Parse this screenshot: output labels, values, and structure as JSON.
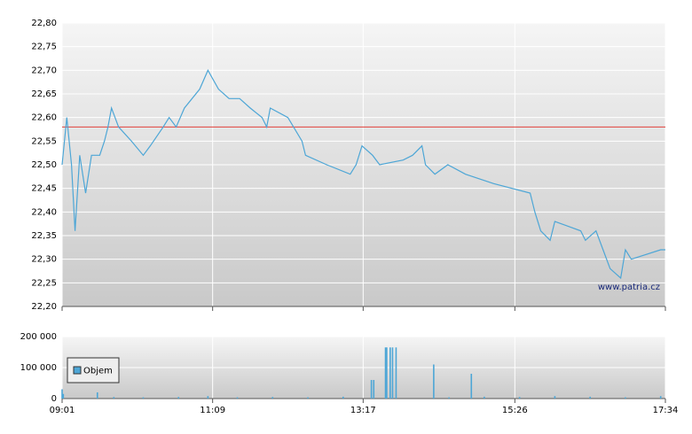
{
  "chart_data": [
    {
      "type": "line",
      "x": [
        "09:01",
        "09:05",
        "09:09",
        "09:12",
        "09:16",
        "09:21",
        "09:26",
        "09:33",
        "09:37",
        "09:40",
        "09:43",
        "09:49",
        "10:00",
        "10:10",
        "10:16",
        "10:27",
        "10:32",
        "10:38",
        "10:45",
        "10:58",
        "11:05",
        "11:14",
        "11:23",
        "11:32",
        "11:41",
        "11:51",
        "11:55",
        "11:58",
        "12:13",
        "12:25",
        "12:28",
        "12:46",
        "13:06",
        "13:11",
        "13:16",
        "13:25",
        "13:31",
        "13:51",
        "13:59",
        "14:07",
        "14:10",
        "14:18",
        "14:29",
        "14:44",
        "15:08",
        "15:39",
        "15:43",
        "15:48",
        "15:56",
        "16:00",
        "16:22",
        "16:26",
        "16:35",
        "16:41",
        "16:47",
        "16:56",
        "17:00",
        "17:05",
        "17:30",
        "17:34"
      ],
      "values": [
        22.5,
        22.6,
        22.5,
        22.36,
        22.52,
        22.44,
        22.52,
        22.52,
        22.55,
        22.58,
        22.62,
        22.58,
        22.55,
        22.52,
        22.54,
        22.58,
        22.6,
        22.58,
        22.62,
        22.66,
        22.7,
        22.66,
        22.64,
        22.64,
        22.62,
        22.6,
        22.58,
        22.62,
        22.6,
        22.55,
        22.52,
        22.5,
        22.48,
        22.5,
        22.54,
        22.52,
        22.5,
        22.51,
        22.52,
        22.54,
        22.5,
        22.48,
        22.5,
        22.48,
        22.46,
        22.44,
        22.4,
        22.36,
        22.34,
        22.38,
        22.36,
        22.34,
        22.36,
        22.32,
        22.28,
        22.26,
        22.32,
        22.3,
        22.32,
        22.32
      ],
      "color": "#4da6d6",
      "reference_line": 22.58,
      "reference_color": "#e0403a",
      "annotation": "www.patria.cz",
      "xlim": [
        "09:01",
        "17:34"
      ],
      "xticks": [
        "09:01",
        "11:09",
        "13:17",
        "15:26",
        "17:34"
      ],
      "ylim": [
        22.2,
        22.8
      ],
      "yticks": [
        {
          "value": 22.2,
          "label": "22,20"
        },
        {
          "value": 22.25,
          "label": "22,25"
        },
        {
          "value": 22.3,
          "label": "22,30"
        },
        {
          "value": 22.35,
          "label": "22,35"
        },
        {
          "value": 22.4,
          "label": "22,40"
        },
        {
          "value": 22.45,
          "label": "22,45"
        },
        {
          "value": 22.5,
          "label": "22,50"
        },
        {
          "value": 22.55,
          "label": "22,55"
        },
        {
          "value": 22.6,
          "label": "22,60"
        },
        {
          "value": 22.65,
          "label": "22,65"
        },
        {
          "value": 22.7,
          "label": "22,70"
        },
        {
          "value": 22.75,
          "label": "22,75"
        },
        {
          "value": 22.8,
          "label": "22,80"
        }
      ],
      "grid": true
    },
    {
      "type": "bar",
      "x": [
        "09:01",
        "09:02",
        "09:31",
        "09:45",
        "10:10",
        "10:40",
        "11:05",
        "11:30",
        "12:00",
        "12:30",
        "13:00",
        "13:24",
        "13:26",
        "13:36",
        "13:37",
        "13:40",
        "13:42",
        "13:45",
        "14:17",
        "14:30",
        "14:49",
        "15:00",
        "15:30",
        "16:00",
        "16:30",
        "17:00",
        "17:30"
      ],
      "series": [
        {
          "name": "Objem",
          "color": "#4da6d6",
          "values": [
            30000,
            15000,
            20000,
            5000,
            4000,
            5000,
            8000,
            4000,
            5000,
            4000,
            6000,
            60000,
            60000,
            165000,
            165000,
            165000,
            165000,
            165000,
            110000,
            4000,
            80000,
            6000,
            5000,
            8000,
            6000,
            4000,
            8000
          ]
        }
      ],
      "xlim": [
        "09:01",
        "17:34"
      ],
      "xticks": [
        "09:01",
        "11:09",
        "13:17",
        "15:26",
        "17:34"
      ],
      "ylim": [
        0,
        200000
      ],
      "yticks": [
        0,
        {
          "value": 100000,
          "label": "100 000"
        },
        {
          "value": 200000,
          "label": "200 000"
        }
      ],
      "grid": true,
      "legend": "top-left"
    }
  ]
}
